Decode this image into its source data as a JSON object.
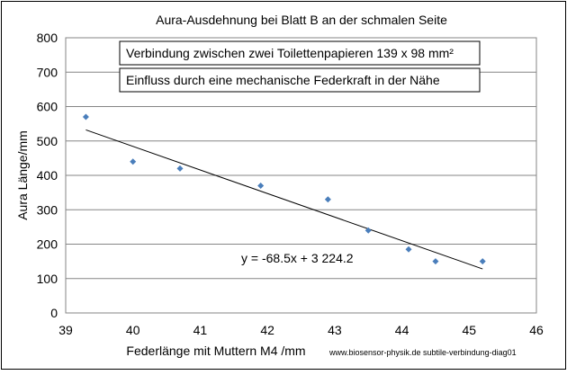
{
  "chart_data": {
    "type": "scatter",
    "title": "Aura-Ausdehnung bei Blatt B an der schmalen Seite",
    "xlabel": "Federlänge mit Muttern M4 /mm",
    "ylabel": "Aura Länge/mm",
    "xlim": [
      39,
      46
    ],
    "ylim": [
      0,
      800
    ],
    "x_ticks": [
      "39",
      "40",
      "41",
      "42",
      "43",
      "44",
      "45",
      "46"
    ],
    "y_ticks": [
      "0",
      "100",
      "200",
      "300",
      "400",
      "500",
      "600",
      "700",
      "800"
    ],
    "grid": "horizontal",
    "series": [
      {
        "points": [
          {
            "x": 39.3,
            "y": 570
          },
          {
            "x": 40.0,
            "y": 440
          },
          {
            "x": 40.7,
            "y": 420
          },
          {
            "x": 41.9,
            "y": 370
          },
          {
            "x": 42.9,
            "y": 330
          },
          {
            "x": 43.5,
            "y": 240
          },
          {
            "x": 44.1,
            "y": 185
          },
          {
            "x": 44.5,
            "y": 150
          },
          {
            "x": 45.2,
            "y": 150
          }
        ],
        "color": "#4a7ebb"
      }
    ],
    "trendline": {
      "equation": "y = -68.5x + 3 224.2",
      "slope": -68.5,
      "intercept": 3224.2,
      "x_range": [
        39.3,
        45.2
      ],
      "color": "#000000"
    },
    "annotations": [
      "Verbindung zwischen zwei Toilettenpapieren 139 x 98 mm²",
      "Einfluss durch eine mechanische Federkraft in der Nähe"
    ],
    "source": "www.biosensor-physik.de subtile-verbindung-diag01"
  }
}
